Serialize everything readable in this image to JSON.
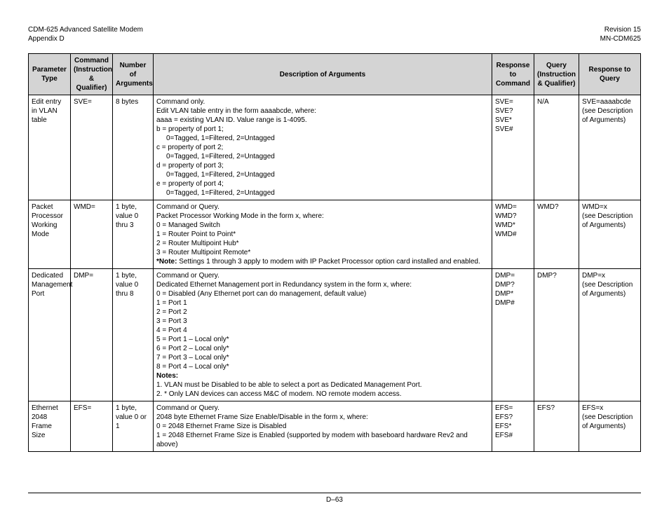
{
  "header": {
    "left1": "CDM-625 Advanced Satellite Modem",
    "left2": "Appendix D",
    "right1": "Revision 15",
    "right2": "MN-CDM625"
  },
  "columns": {
    "c1": "Parameter Type",
    "c2": "Command (Instruction & Qualifier)",
    "c3": "Number of Arguments",
    "c4": "Description of Arguments",
    "c5": "Response to Command",
    "c6": "Query (Instruction & Qualifier)",
    "c7": "Response to Query"
  },
  "rows": {
    "sve": {
      "param": "Edit entry in VLAN table",
      "cmd": "SVE=",
      "nargs": "8 bytes",
      "desc": {
        "l1": "Command only.",
        "l2": "Edit VLAN table entry in the form aaaabcde, where:",
        "l3": "aaaa = existing VLAN ID. Value range is 1-4095.",
        "l4": "b = property of port 1;",
        "l5": "0=Tagged, 1=Filtered, 2=Untagged",
        "l6": "c = property of port 2;",
        "l7": "0=Tagged, 1=Filtered, 2=Untagged",
        "l8": "d = property of port 3;",
        "l9": "0=Tagged, 1=Filtered, 2=Untagged",
        "l10": "e = property of port 4;",
        "l11": "0=Tagged, 1=Filtered, 2=Untagged"
      },
      "resp_cmd": {
        "l1": "SVE=",
        "l2": "SVE?",
        "l3": "SVE*",
        "l4": "SVE#"
      },
      "query": "N/A",
      "resp_q": {
        "l1": "SVE=aaaabcde",
        "l2": "(see Description of Arguments)"
      }
    },
    "wmd": {
      "param": "Packet Processor Working Mode",
      "cmd": "WMD=",
      "nargs": "1 byte, value 0 thru 3",
      "desc": {
        "l1": "Command or Query.",
        "l2": "Packet Processor Working Mode in the form x, where:",
        "l3": "0 = Managed Switch",
        "l4": "1 = Router Point to Point*",
        "l5": "2 = Router Multipoint Hub*",
        "l6": "3 = Router Multipoint Remote*",
        "note_b": "*Note:",
        "note_t": " Settings 1 through 3 apply to modem          with IP Packet Processor option card installed and enabled."
      },
      "resp_cmd": {
        "l1": "WMD=",
        "l2": "WMD?",
        "l3": "WMD*",
        "l4": "WMD#"
      },
      "query": "WMD?",
      "resp_q": {
        "l1": "WMD=x",
        "l2": "(see Description of Arguments)"
      }
    },
    "dmp": {
      "param": "Dedicated Management Port",
      "cmd": "DMP=",
      "nargs": "1 byte, value 0 thru 8",
      "desc": {
        "l1": "Command or Query.",
        "l2": "Dedicated Ethernet Management port in Redundancy system in the form x, where:",
        "l3": "0 = Disabled (Any Ethernet port can do management, default value)",
        "l4": "1 = Port 1",
        "l5": "2 = Port 2",
        "l6": "3 = Port 3",
        "l7": "4 = Port 4",
        "l8": "5 = Port 1 – Local only*",
        "l9": "6 = Port 2 – Local only*",
        "l10": "7 = Port 3 – Local only*",
        "l11": "8 = Port 4 – Local only*",
        "notes_b": "Notes:",
        "n1": "1.  VLAN must be Disabled to be able to select a port as Dedicated Management Port.",
        "n2": "2.  * Only LAN devices can access M&C of modem. NO remote modem access."
      },
      "resp_cmd": {
        "l1": "DMP=",
        "l2": "DMP?",
        "l3": "DMP*",
        "l4": "DMP#"
      },
      "query": "DMP?",
      "resp_q": {
        "l1": "DMP=x",
        "l2": "(see Description of Arguments)"
      }
    },
    "efs": {
      "param": "Ethernet 2048 Frame Size",
      "cmd": "EFS=",
      "nargs": "1 byte, value 0 or 1",
      "desc": {
        "l1": "Command or Query.",
        "l2": "2048 byte Ethernet Frame Size Enable/Disable in the form x, where:",
        "l3": "0 = 2048 Ethernet Frame Size is Disabled",
        "l4": "1 = 2048 Ethernet Frame Size is Enabled (supported by modem with baseboard hardware Rev2 and above)"
      },
      "resp_cmd": {
        "l1": "EFS=",
        "l2": "EFS?",
        "l3": "EFS*",
        "l4": "EFS#"
      },
      "query": "EFS?",
      "resp_q": {
        "l1": "EFS=x",
        "l2": "(see Description of Arguments)"
      }
    }
  },
  "footer": "D–63"
}
